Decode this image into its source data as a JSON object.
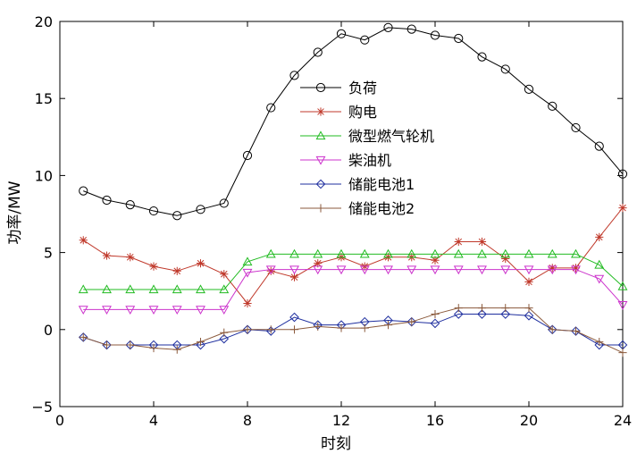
{
  "chart_data": {
    "type": "line",
    "title": "",
    "xlabel": "时刻",
    "ylabel": "功率/MW",
    "xlim": [
      0,
      24
    ],
    "ylim": [
      -5,
      20
    ],
    "xticks": [
      0,
      4,
      8,
      12,
      16,
      20,
      24
    ],
    "yticks": [
      -5,
      0,
      5,
      10,
      15,
      20
    ],
    "grid": false,
    "legend_position": "upper-middle",
    "x": [
      1,
      2,
      3,
      4,
      5,
      6,
      7,
      8,
      9,
      10,
      11,
      12,
      13,
      14,
      15,
      16,
      17,
      18,
      19,
      20,
      21,
      22,
      23,
      24
    ],
    "series": [
      {
        "name": "负荷",
        "color": "#000000",
        "marker": "circle",
        "values": [
          9.0,
          8.4,
          8.1,
          7.7,
          7.4,
          7.8,
          8.2,
          11.3,
          14.4,
          16.5,
          18.0,
          19.2,
          18.8,
          19.6,
          19.5,
          19.1,
          18.9,
          17.7,
          16.9,
          15.6,
          14.5,
          13.1,
          11.9,
          10.1
        ]
      },
      {
        "name": "购电",
        "color": "#c0392b",
        "marker": "asterisk",
        "values": [
          5.8,
          4.8,
          4.7,
          4.1,
          3.8,
          4.3,
          3.6,
          1.7,
          3.8,
          3.4,
          4.3,
          4.7,
          4.1,
          4.7,
          4.7,
          4.5,
          5.7,
          5.7,
          4.6,
          3.1,
          4.0,
          4.0,
          6.0,
          7.9
        ]
      },
      {
        "name": "微型燃气轮机",
        "color": "#22bb22",
        "marker": "triangle-up",
        "values": [
          2.6,
          2.6,
          2.6,
          2.6,
          2.6,
          2.6,
          2.6,
          4.4,
          4.9,
          4.9,
          4.9,
          4.9,
          4.9,
          4.9,
          4.9,
          4.9,
          4.9,
          4.9,
          4.9,
          4.9,
          4.9,
          4.9,
          4.2,
          2.8
        ]
      },
      {
        "name": "柴油机",
        "color": "#cc33cc",
        "marker": "triangle-down",
        "values": [
          1.3,
          1.3,
          1.3,
          1.3,
          1.3,
          1.3,
          1.3,
          3.7,
          3.9,
          3.9,
          3.9,
          3.9,
          3.9,
          3.9,
          3.9,
          3.9,
          3.9,
          3.9,
          3.9,
          3.9,
          3.9,
          3.9,
          3.3,
          1.6
        ]
      },
      {
        "name": "储能电池1",
        "color": "#1f2f9f",
        "marker": "diamond",
        "values": [
          -0.5,
          -1.0,
          -1.0,
          -1.0,
          -1.0,
          -1.0,
          -0.6,
          0.0,
          -0.1,
          0.8,
          0.3,
          0.3,
          0.5,
          0.6,
          0.5,
          0.4,
          1.0,
          1.0,
          1.0,
          0.9,
          0.0,
          -0.1,
          -1.0,
          -1.0
        ]
      },
      {
        "name": "储能电池2",
        "color": "#8b5a3c",
        "marker": "plus",
        "values": [
          -0.5,
          -1.0,
          -1.0,
          -1.2,
          -1.3,
          -0.8,
          -0.2,
          0.0,
          0.0,
          0.0,
          0.2,
          0.1,
          0.1,
          0.3,
          0.5,
          1.0,
          1.4,
          1.4,
          1.4,
          1.4,
          0.0,
          -0.1,
          -0.8,
          -1.5
        ]
      }
    ]
  }
}
